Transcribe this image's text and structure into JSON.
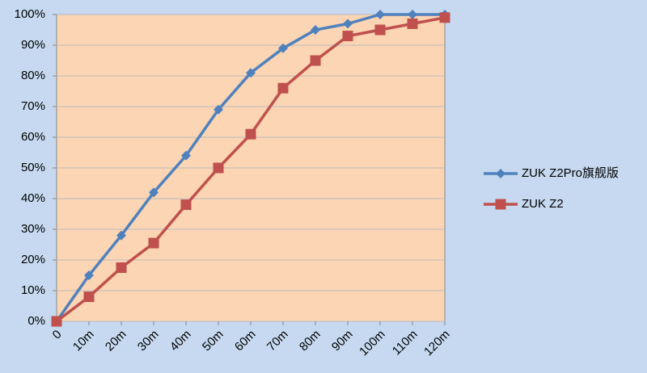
{
  "chart_data": {
    "type": "line",
    "categories": [
      "0",
      "10m",
      "20m",
      "30m",
      "40m",
      "50m",
      "60m",
      "70m",
      "80m",
      "90m",
      "100m",
      "110m",
      "120m"
    ],
    "series": [
      {
        "name": "ZUK Z2Pro旗舰版",
        "color": "#4f81bd",
        "marker": "diamond",
        "values": [
          0,
          15,
          28,
          42,
          54,
          69,
          81,
          89,
          95,
          97,
          100,
          100,
          100
        ]
      },
      {
        "name": "ZUK Z2",
        "color": "#c0504d",
        "marker": "square",
        "values": [
          0,
          8,
          17.5,
          25.5,
          38,
          50,
          61,
          76,
          85,
          93,
          95,
          97,
          99
        ]
      }
    ],
    "ylim": [
      0,
      100
    ],
    "yticks": [
      {
        "value": 0,
        "label": "0%"
      },
      {
        "value": 10,
        "label": "10%"
      },
      {
        "value": 20,
        "label": "20%"
      },
      {
        "value": 30,
        "label": "30%"
      },
      {
        "value": 40,
        "label": "40%"
      },
      {
        "value": 50,
        "label": "50%"
      },
      {
        "value": 60,
        "label": "60%"
      },
      {
        "value": 70,
        "label": "70%"
      },
      {
        "value": 80,
        "label": "80%"
      },
      {
        "value": 90,
        "label": "90%"
      },
      {
        "value": 100,
        "label": "100%"
      }
    ],
    "grid": true,
    "legend": "right"
  }
}
